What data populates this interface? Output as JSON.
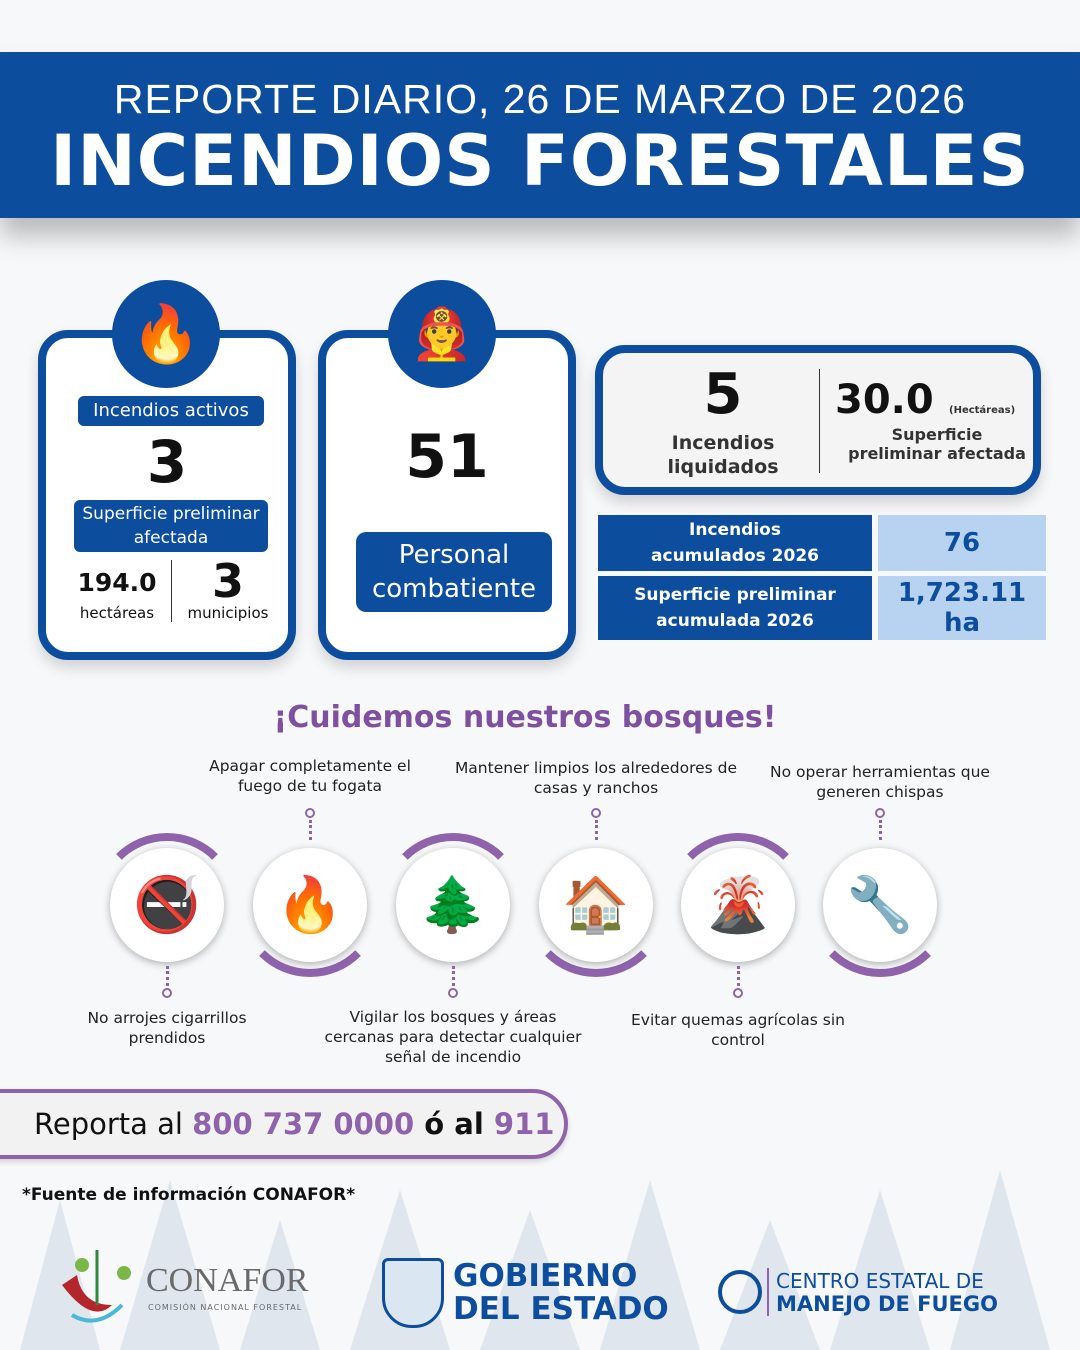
{
  "header": {
    "subtitle": "REPORTE DIARIO, 26 DE MARZO DE 2026",
    "title": "INCENDIOS FORESTALES"
  },
  "active": {
    "icon": "fire-icon",
    "label": "Incendios activos",
    "value": "3",
    "surface_label": "Superficie preliminar afectada",
    "hectares": "194.0",
    "hectares_label": "hectáreas",
    "municipios": "3",
    "municipios_label": "municipios"
  },
  "personnel": {
    "icon": "firefighter-icon",
    "value": "51",
    "label_line1": "Personal",
    "label_line2": "combatiente"
  },
  "liquidated": {
    "value": "5",
    "label_line1": "Incendios",
    "label_line2": "liquidados",
    "surface": "30.0",
    "surface_unit": "(Hectáreas)",
    "surface_label_line1": "Superficie",
    "surface_label_line2": "preliminar afectada"
  },
  "cumulative": [
    {
      "label_line1": "Incendios",
      "label_line2": "acumulados 2026",
      "value": "76"
    },
    {
      "label_line1": "Superficie preliminar",
      "label_line2": "acumulada 2026",
      "value": "1,723.11 ha"
    }
  ],
  "tips": {
    "title": "¡Cuidemos nuestros bosques!",
    "items": [
      {
        "icon": "no-smoking-icon",
        "text": "No arrojes cigarrillos prendidos"
      },
      {
        "icon": "campfire-icon",
        "text": "Apagar completamente el fuego de tu fogata"
      },
      {
        "icon": "pine-tree-icon",
        "text": "Vigilar los bosques y áreas cercanas para detectar cualquier señal de incendio"
      },
      {
        "icon": "clean-house-icon",
        "text": "Mantener limpios los alrededores de casas y ranchos"
      },
      {
        "icon": "burning-field-icon",
        "text": "Evitar quemas agrícolas sin control"
      },
      {
        "icon": "spark-tool-icon",
        "text": "No operar herramientas que generen chispas"
      }
    ]
  },
  "report": {
    "prefix": "Reporta al ",
    "phone": "800 737 0000",
    "middle": " ó al ",
    "emergency": "911"
  },
  "source": "*Fuente de información CONAFOR*",
  "logos": {
    "conafor": "CONAFOR",
    "conafor_sub": "COMISIÓN NACIONAL FORESTAL",
    "gob_line1": "GOBIERNO",
    "gob_line2": "DEL ESTADO",
    "centro_line1": "CENTRO ESTATAL DE",
    "centro_line2": "MANEJO DE FUEGO"
  },
  "colors": {
    "blue": "#0c4d9e",
    "light_blue": "#b7d3f1",
    "purple": "#8e63ab"
  }
}
